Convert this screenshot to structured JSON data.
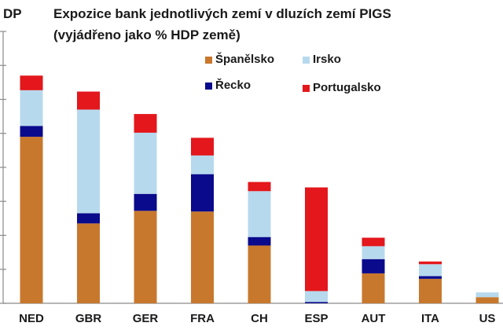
{
  "chart_data": {
    "type": "bar",
    "stacked": true,
    "title": "Expozice bank jednotlivých zemí v dluzích zemí PIGS",
    "subtitle": "(vyjádřeno jako % HDP země)",
    "ylabel_fragment": "DP",
    "ylim": [
      0,
      8
    ],
    "grid": false,
    "legend_position": "top-right",
    "categories": [
      "NED",
      "GBR",
      "GER",
      "FRA",
      "CH",
      "ESP",
      "AUT",
      "ITA",
      "US"
    ],
    "series": [
      {
        "name": "Španělsko",
        "color": "#C8782D",
        "values": [
          4.9,
          2.35,
          2.72,
          2.7,
          1.7,
          0.0,
          0.88,
          0.72,
          0.18
        ]
      },
      {
        "name": "Řecko",
        "color": "#0A0A8C",
        "values": [
          0.32,
          0.3,
          0.5,
          1.1,
          0.25,
          0.04,
          0.42,
          0.08,
          0.0
        ]
      },
      {
        "name": "Irsko",
        "color": "#B7D9EE",
        "values": [
          1.05,
          3.05,
          1.8,
          0.55,
          1.35,
          0.32,
          0.38,
          0.35,
          0.14
        ]
      },
      {
        "name": "Portugalsko",
        "color": "#E3171C",
        "values": [
          0.43,
          0.53,
          0.55,
          0.52,
          0.27,
          3.05,
          0.25,
          0.08,
          0.0
        ]
      }
    ]
  }
}
